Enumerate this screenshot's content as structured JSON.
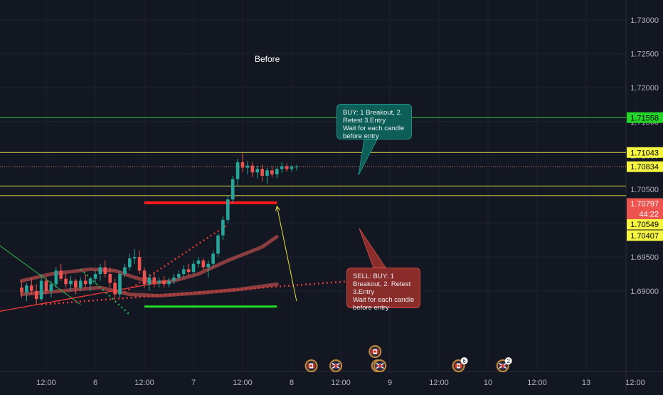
{
  "chart_data": {
    "type": "candlestick",
    "title": "Before",
    "ylim": [
      1.686,
      1.734
    ],
    "y_ticks": [
      "1.73000",
      "1.72500",
      "1.72000",
      "1.71500",
      "1.71000",
      "1.70500",
      "1.70000",
      "1.69500",
      "1.69000"
    ],
    "y_tick_values": [
      1.73,
      1.725,
      1.72,
      1.715,
      1.71,
      1.705,
      1.7,
      1.695,
      1.69
    ],
    "x_ticks": [
      "12:00",
      "6",
      "12:00",
      "7",
      "12:00",
      "8",
      "12:00",
      "9",
      "12:00",
      "10",
      "12:00",
      "13",
      "12:00"
    ],
    "x_tick_index": [
      5,
      15,
      25,
      35,
      45,
      55,
      65,
      75,
      85,
      95,
      105,
      115,
      125
    ],
    "horizontal_levels": [
      {
        "value": 1.71558,
        "label": "1.71558",
        "line_color": "#3fbf3f",
        "tag_bg": "#25d429"
      },
      {
        "value": 1.71043,
        "label": "1.71043",
        "line_color": "#d8d84a",
        "tag_bg": "#f5f542"
      },
      {
        "value": 1.70834,
        "label": "1.70834",
        "line_color": "#e08a6e",
        "tag_bg": "#f5f542",
        "dotted": true
      },
      {
        "value": 1.70797,
        "label": "1.70797",
        "line_color": "#ef5350",
        "tag_bg": "#ef5350",
        "hidden_line": true
      },
      {
        "value": 1.70549,
        "label": "1.70549",
        "line_color": "#d8d84a",
        "tag_bg": "#f5f542"
      },
      {
        "value": 1.70407,
        "label": "1.70407",
        "line_color": "#d8d84a",
        "tag_bg": "#f5f542"
      }
    ],
    "countdown": "44:22",
    "candles": [
      [
        1.6905,
        1.6915,
        1.689,
        1.6898
      ],
      [
        1.6898,
        1.6912,
        1.6885,
        1.6908
      ],
      [
        1.6908,
        1.6918,
        1.6895,
        1.69
      ],
      [
        1.69,
        1.691,
        1.688,
        1.6888
      ],
      [
        1.6888,
        1.6925,
        1.6885,
        1.6915
      ],
      [
        1.6915,
        1.692,
        1.6895,
        1.69
      ],
      [
        1.69,
        1.6915,
        1.689,
        1.691
      ],
      [
        1.691,
        1.6935,
        1.6905,
        1.693
      ],
      [
        1.693,
        1.694,
        1.6915,
        1.6918
      ],
      [
        1.6918,
        1.6925,
        1.6905,
        1.691
      ],
      [
        1.691,
        1.6922,
        1.69,
        1.6915
      ],
      [
        1.6915,
        1.6918,
        1.6895,
        1.6905
      ],
      [
        1.6905,
        1.692,
        1.69,
        1.6915
      ],
      [
        1.6915,
        1.6925,
        1.6905,
        1.691
      ],
      [
        1.691,
        1.692,
        1.69,
        1.6918
      ],
      [
        1.6918,
        1.693,
        1.691,
        1.6925
      ],
      [
        1.6925,
        1.694,
        1.6915,
        1.6935
      ],
      [
        1.6935,
        1.6945,
        1.692,
        1.6925
      ],
      [
        1.6925,
        1.6935,
        1.6905,
        1.6912
      ],
      [
        1.6912,
        1.6918,
        1.689,
        1.6895
      ],
      [
        1.6895,
        1.693,
        1.689,
        1.6925
      ],
      [
        1.6925,
        1.694,
        1.692,
        1.6935
      ],
      [
        1.6935,
        1.6955,
        1.693,
        1.6948
      ],
      [
        1.6948,
        1.6962,
        1.694,
        1.695
      ],
      [
        1.695,
        1.696,
        1.6925,
        1.693
      ],
      [
        1.693,
        1.6935,
        1.6905,
        1.691
      ],
      [
        1.691,
        1.6925,
        1.69,
        1.692
      ],
      [
        1.692,
        1.6928,
        1.6905,
        1.6912
      ],
      [
        1.6912,
        1.692,
        1.6905,
        1.6915
      ],
      [
        1.6915,
        1.6922,
        1.6905,
        1.691
      ],
      [
        1.691,
        1.692,
        1.6905,
        1.6915
      ],
      [
        1.6915,
        1.6925,
        1.691,
        1.692
      ],
      [
        1.692,
        1.693,
        1.6915,
        1.6925
      ],
      [
        1.6925,
        1.6938,
        1.692,
        1.6932
      ],
      [
        1.6932,
        1.694,
        1.6922,
        1.6928
      ],
      [
        1.6928,
        1.6945,
        1.6925,
        1.694
      ],
      [
        1.694,
        1.695,
        1.6935,
        1.6945
      ],
      [
        1.6945,
        1.6948,
        1.693,
        1.6935
      ],
      [
        1.6935,
        1.6945,
        1.692,
        1.694
      ],
      [
        1.694,
        1.696,
        1.6935,
        1.6955
      ],
      [
        1.6955,
        1.6985,
        1.695,
        1.6982
      ],
      [
        1.6982,
        1.701,
        1.6975,
        1.7005
      ],
      [
        1.7005,
        1.704,
        1.7,
        1.7035
      ],
      [
        1.7035,
        1.707,
        1.703,
        1.7065
      ],
      [
        1.7065,
        1.7095,
        1.7055,
        1.709
      ],
      [
        1.709,
        1.7104,
        1.7075,
        1.7082
      ],
      [
        1.7082,
        1.7092,
        1.7072,
        1.7085
      ],
      [
        1.7085,
        1.709,
        1.7068,
        1.7075
      ],
      [
        1.7075,
        1.7085,
        1.7066,
        1.708
      ],
      [
        1.708,
        1.7086,
        1.7062,
        1.707
      ],
      [
        1.707,
        1.7082,
        1.7058,
        1.7078
      ],
      [
        1.7078,
        1.7084,
        1.7068,
        1.7072
      ],
      [
        1.7072,
        1.7082,
        1.7066,
        1.708
      ],
      [
        1.708,
        1.709,
        1.7074,
        1.7084
      ],
      [
        1.7084,
        1.7088,
        1.7076,
        1.708
      ],
      [
        1.708,
        1.7086,
        1.7076,
        1.7083
      ],
      [
        1.7083,
        1.7086,
        1.7078,
        1.70834
      ]
    ],
    "drawings": {
      "upper_channel_red_dotted": [
        [
          1.6898,
          21
        ],
        [
          1.6998,
          42
        ]
      ],
      "lower_channel_red_dotted": [
        [
          1.688,
          4
        ],
        [
          1.692,
          77
        ]
      ],
      "green_trend_line": [
        [
          1.6975,
          -6
        ],
        [
          1.688,
          12
        ]
      ],
      "green_dotted_line": [
        [
          1.6932,
          12
        ],
        [
          1.6865,
          22
        ]
      ],
      "red_trend_line": [
        [
          1.6868,
          -6
        ],
        [
          1.6915,
          30
        ]
      ],
      "resistance_red_bar": [
        1.703,
        25,
        52
      ],
      "support_green_bar": [
        1.6877,
        25,
        52
      ],
      "yellow_arrow": [
        [
          1.6885,
          56
        ],
        [
          1.7025,
          52
        ]
      ]
    },
    "moving_averages": [
      {
        "name": "ma1",
        "color": "#a04444",
        "points": [
          [
            0,
            1.6915
          ],
          [
            6,
            1.6925
          ],
          [
            14,
            1.6932
          ],
          [
            19,
            1.693
          ],
          [
            23,
            1.692
          ],
          [
            27,
            1.6912
          ],
          [
            31,
            1.6915
          ],
          [
            36,
            1.6925
          ],
          [
            42,
            1.6945
          ],
          [
            49,
            1.6965
          ],
          [
            52,
            1.698
          ]
        ]
      },
      {
        "name": "ma2",
        "color": "#a04444",
        "points": [
          [
            0,
            1.6895
          ],
          [
            8,
            1.69
          ],
          [
            16,
            1.6905
          ],
          [
            22,
            1.6895
          ],
          [
            28,
            1.6893
          ],
          [
            36,
            1.6897
          ],
          [
            44,
            1.6902
          ],
          [
            52,
            1.691
          ]
        ]
      }
    ],
    "callouts": {
      "buy": [
        "BUY: 1 Breakout, 2.",
        "Retest 3.Entry",
        "Wait for each candle",
        "before entry"
      ],
      "sell": [
        "SELL: BUY: 1",
        "Breakout, 2. Retest",
        "3.Entry",
        "Wait for each candle",
        "before entry"
      ]
    },
    "event_markers": [
      {
        "index": 59,
        "flag": "ca"
      },
      {
        "index": 64,
        "flag": "gb"
      },
      {
        "index": 72,
        "flag": "ca"
      },
      {
        "index": 72.5,
        "flag": "gb"
      },
      {
        "index": 73,
        "flag": "gb"
      },
      {
        "index": 89,
        "flag": "ca",
        "badge": "6"
      },
      {
        "index": 98,
        "flag": "gb",
        "badge": "2"
      }
    ]
  },
  "colors": {
    "background": "#131722",
    "up": "#26a69a",
    "down": "#ef5350",
    "grid": "#1e2230",
    "axis_text": "#b2b5be"
  }
}
